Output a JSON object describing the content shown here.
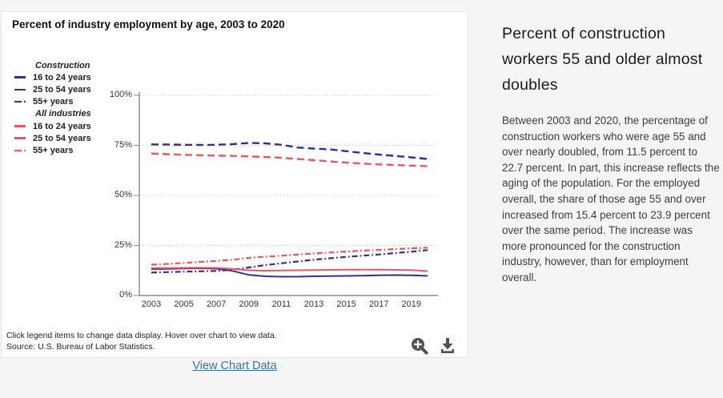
{
  "ui_colors": {
    "construction": "#30309c",
    "all_industries": "#ef5460",
    "link": "#3278a8",
    "icon": "#4d5358",
    "axis": "#8a8a8a",
    "grid": "#c9c9c9"
  },
  "chart_panel": {
    "title": "Percent of industry employment by age, 2003 to 2020",
    "footnote_line1": "Click legend items to change data display. Hover over chart to view data.",
    "footnote_line2": "Source: U.S. Bureau of Labor Statistics.",
    "view_data_link": "View Chart Data"
  },
  "legend": {
    "groups": [
      {
        "label": "Construction",
        "color": "#30309c",
        "items": [
          "16 to 24 years",
          "25 to 54 years",
          "55+ years"
        ]
      },
      {
        "label": "All industries",
        "color": "#ef5460",
        "items": [
          "16 to 24 years",
          "25 to 54 years",
          "55+ years"
        ]
      }
    ]
  },
  "chart_data": {
    "type": "line",
    "title": "Percent of industry employment by age, 2003 to 2020",
    "x_years": [
      2003,
      2004,
      2005,
      2006,
      2007,
      2008,
      2009,
      2010,
      2011,
      2012,
      2013,
      2014,
      2015,
      2016,
      2017,
      2018,
      2019,
      2020
    ],
    "x_tick_years": [
      "2003",
      "2005",
      "2007",
      "2009",
      "2011",
      "2013",
      "2015",
      "2017",
      "2019"
    ],
    "y_ticks": [
      {
        "value": 100,
        "label": "100%"
      },
      {
        "value": 75,
        "label": "75%"
      },
      {
        "value": 50,
        "label": "50%"
      },
      {
        "value": 25,
        "label": "25%"
      },
      {
        "value": 0,
        "label": "0%"
      }
    ],
    "ylim": [
      0,
      100
    ],
    "grid": "dotted-horizontal",
    "legend_position": "outside-upper-left",
    "series": [
      {
        "name": "Construction 16 to 24 years",
        "group": "Construction",
        "label": "16 to 24 years",
        "color": "#30309c",
        "dash": "solid",
        "values": [
          13.2,
          13.3,
          13.5,
          13.6,
          13.4,
          12.3,
          10.3,
          9.6,
          9.4,
          9.4,
          9.6,
          9.7,
          9.8,
          9.9,
          10.1,
          10.2,
          10.1,
          9.8
        ]
      },
      {
        "name": "Construction 25 to 54 years",
        "group": "Construction",
        "label": "25 to 54 years",
        "color": "#30309c",
        "dash": "dash",
        "values": [
          75.5,
          75.4,
          75.3,
          75.2,
          75.3,
          75.6,
          76.2,
          76.0,
          75.3,
          73.9,
          73.4,
          73.0,
          72.1,
          71.2,
          70.4,
          69.7,
          69.0,
          68.2
        ]
      },
      {
        "name": "Construction 55+ years",
        "group": "Construction",
        "label": "55+ years",
        "color": "#30309c",
        "dash": "dashdot",
        "values": [
          11.5,
          11.7,
          11.9,
          12.1,
          12.3,
          12.9,
          14.0,
          15.2,
          16.1,
          17.0,
          17.9,
          18.6,
          19.3,
          19.9,
          20.5,
          21.2,
          21.9,
          22.7
        ]
      },
      {
        "name": "All industries 16 to 24 years",
        "group": "All industries",
        "label": "16 to 24 years",
        "color": "#ef5460",
        "dash": "solid",
        "values": [
          13.7,
          13.7,
          13.8,
          13.9,
          13.8,
          13.3,
          12.6,
          12.4,
          12.5,
          12.6,
          12.7,
          12.8,
          12.9,
          12.9,
          12.9,
          12.8,
          12.7,
          12.2
        ]
      },
      {
        "name": "All industries 25 to 54 years",
        "group": "All industries",
        "label": "25 to 54 years",
        "color": "#ef5460",
        "dash": "dash",
        "values": [
          70.9,
          70.6,
          70.3,
          70.1,
          69.9,
          69.7,
          69.5,
          69.2,
          68.8,
          68.2,
          67.6,
          67.0,
          66.4,
          65.9,
          65.5,
          65.2,
          64.9,
          64.6
        ]
      },
      {
        "name": "All industries 55+ years",
        "group": "All industries",
        "label": "55+ years",
        "color": "#ef5460",
        "dash": "dashdot",
        "values": [
          15.4,
          15.8,
          16.3,
          16.8,
          17.3,
          17.9,
          18.8,
          19.4,
          19.9,
          20.5,
          21.0,
          21.5,
          22.0,
          22.4,
          22.8,
          23.2,
          23.6,
          23.9
        ]
      }
    ]
  },
  "article": {
    "heading": "Percent of construction workers 55 and older almost doubles",
    "body": "Between 2003 and 2020, the percentage of construction workers who were age 55 and over nearly doubled, from 11.5 percent to 22.7 percent. In part, this increase reflects the aging of the population. For the employed overall, the share of those age 55 and over increased from 15.4 percent to 23.9 percent over the same period. The increase was more pronounced for the construction industry, however, than for employment overall."
  }
}
